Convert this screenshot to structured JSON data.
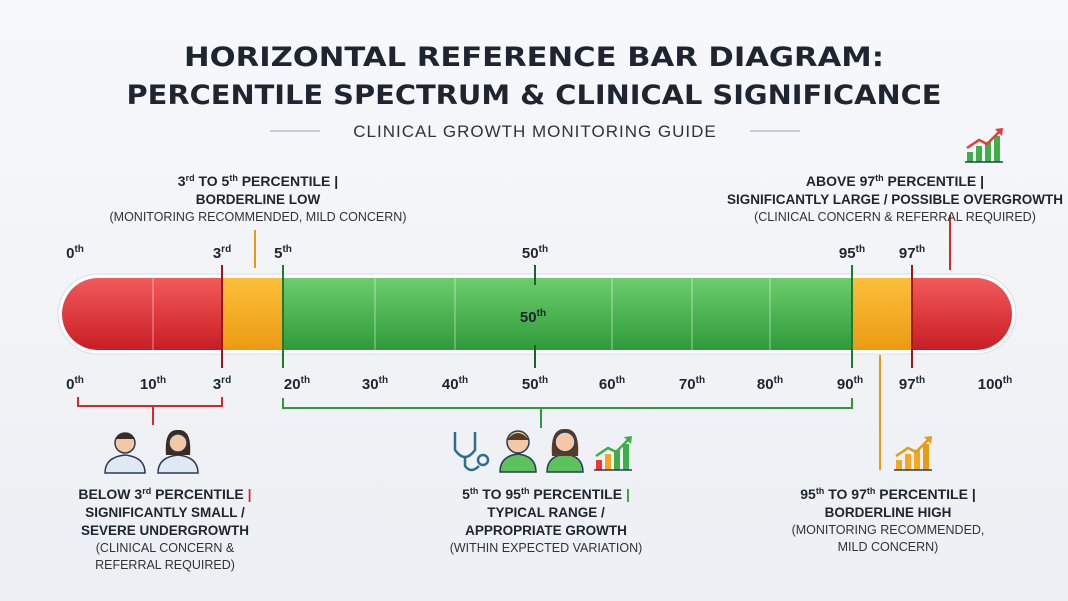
{
  "title": {
    "lines": [
      "HORIZONTAL REFERENCE BAR DIAGRAM:",
      "PERCENTILE SPECTRUM & CLINICAL SIGNIFICANCE"
    ],
    "subtitle": "CLINICAL GROWTH MONITORING GUIDE"
  },
  "top_ticks": [
    {
      "num": "0",
      "sup": "th"
    },
    {
      "num": "3",
      "sup": "rd"
    },
    {
      "num": "5",
      "sup": "th"
    },
    {
      "num": "50",
      "sup": "th"
    },
    {
      "num": "95",
      "sup": "th"
    },
    {
      "num": "97",
      "sup": "th"
    }
  ],
  "bottom_ticks": [
    {
      "num": "0",
      "sup": "th"
    },
    {
      "num": "10",
      "sup": "th"
    },
    {
      "num": "3",
      "sup": "rd"
    },
    {
      "num": "20",
      "sup": "th"
    },
    {
      "num": "30",
      "sup": "th"
    },
    {
      "num": "40",
      "sup": "th"
    },
    {
      "num": "50",
      "sup": "th"
    },
    {
      "num": "60",
      "sup": "th"
    },
    {
      "num": "70",
      "sup": "th"
    },
    {
      "num": "80",
      "sup": "th"
    },
    {
      "num": "90",
      "sup": "th"
    },
    {
      "num": "97",
      "sup": "th"
    },
    {
      "num": "100",
      "sup": "th"
    }
  ],
  "bar_label": {
    "num": "50",
    "sup": "th"
  },
  "callouts": [
    {
      "heading": [
        {
          "text": "3"
        },
        {
          "text": "rd",
          "sup": true
        },
        {
          "text": " TO 5"
        },
        {
          "text": "th",
          "sup": true
        },
        {
          "text": " PERCENTILE "
        },
        {
          "text": "|"
        }
      ],
      "lines": [
        "BORDERLINE LOW"
      ],
      "notes": [
        "(MONITORING RECOMMENDED, MILD CONCERN)"
      ]
    },
    {
      "heading": [
        {
          "text": "ABOVE 97"
        },
        {
          "text": "th",
          "sup": true
        },
        {
          "text": " PERCENTILE "
        },
        {
          "text": "|"
        }
      ],
      "lines": [
        "SIGNIFICANTLY LARGE / POSSIBLE OVERGROWTH"
      ],
      "notes": [
        "(CLINICAL CONCERN & REFERRAL REQUIRED)"
      ]
    },
    {
      "heading": [
        {
          "text": "BELOW 3"
        },
        {
          "text": "rd",
          "sup": true
        },
        {
          "text": " PERCENTILE "
        },
        {
          "text": "|"
        }
      ],
      "lines": [
        "SIGNIFICANTLY SMALL /",
        "SEVERE UNDERGROWTH"
      ],
      "notes": [
        "(CLINICAL CONCERN &",
        "REFERRAL REQUIRED)"
      ]
    },
    {
      "heading": [
        {
          "text": "5"
        },
        {
          "text": "th",
          "sup": true
        },
        {
          "text": " TO 95"
        },
        {
          "text": "th",
          "sup": true
        },
        {
          "text": " PERCENTILE "
        },
        {
          "text": "|"
        }
      ],
      "lines": [
        "TYPICAL RANGE /",
        "APPROPRIATE GROWTH"
      ],
      "notes": [
        "(WITHIN EXPECTED VARIATION)"
      ]
    },
    {
      "heading": [
        {
          "text": "95"
        },
        {
          "text": "th",
          "sup": true
        },
        {
          "text": " TO 97"
        },
        {
          "text": "th",
          "sup": true
        },
        {
          "text": " PERCENTILE "
        },
        {
          "text": "|"
        }
      ],
      "lines": [
        "BORDERLINE HIGH"
      ],
      "notes": [
        "(MONITORING RECOMMENDED,",
        "MILD CONCERN)"
      ]
    }
  ]
}
